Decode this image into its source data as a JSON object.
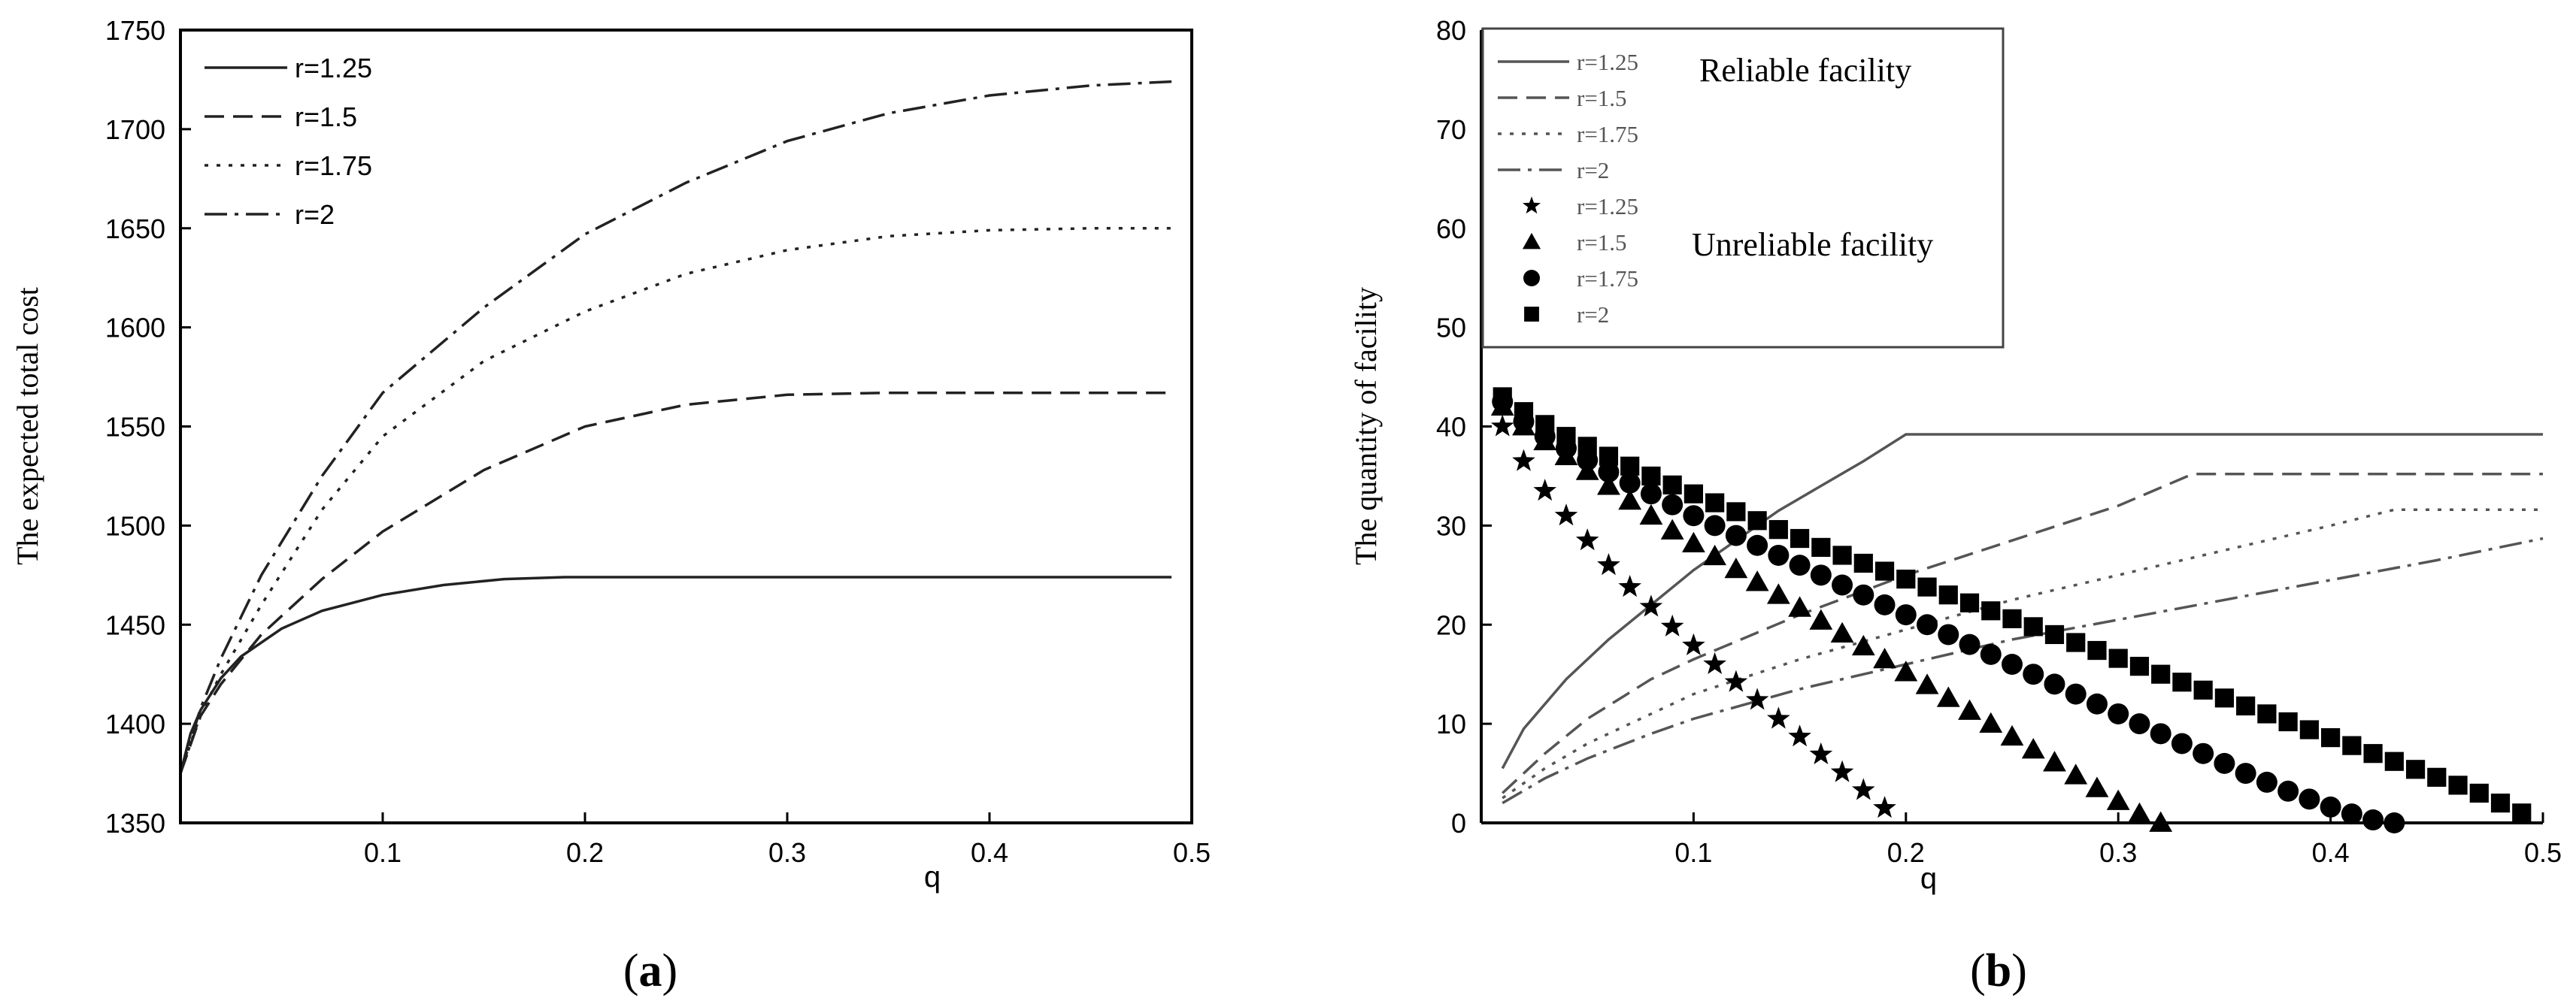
{
  "chart_data": [
    {
      "panel_label_prefix": "(",
      "panel_label_letter": "a",
      "panel_label_suffix": ")",
      "type": "line",
      "title": "",
      "xlabel": "q",
      "ylabel": "The expected total cost",
      "xlim": [
        0,
        0.5
      ],
      "ylim": [
        1350,
        1750
      ],
      "xticks": [
        0.1,
        0.2,
        0.3,
        0.4,
        0.5
      ],
      "xtick_labels": [
        "0.1",
        "0.2",
        "0.3",
        "0.4",
        "0.5"
      ],
      "yticks": [
        1350,
        1400,
        1450,
        1500,
        1550,
        1600,
        1650,
        1700,
        1750
      ],
      "ytick_labels": [
        "1350",
        "1400",
        "1450",
        "1500",
        "1550",
        "1600",
        "1650",
        "1700",
        "1750"
      ],
      "grid": false,
      "legend_position": "top-left",
      "series": [
        {
          "name": "r=1.25",
          "dash": "solid",
          "x": [
            0.0,
            0.005,
            0.01,
            0.02,
            0.03,
            0.05,
            0.07,
            0.1,
            0.13,
            0.16,
            0.19,
            0.2,
            0.3,
            0.4,
            0.49
          ],
          "y": [
            1375,
            1395,
            1407,
            1423,
            1434,
            1448,
            1457,
            1465,
            1470,
            1473,
            1474,
            1474,
            1474,
            1474,
            1474
          ]
        },
        {
          "name": "r=1.5",
          "dash": "dash",
          "x": [
            0.0,
            0.01,
            0.02,
            0.04,
            0.07,
            0.1,
            0.15,
            0.2,
            0.25,
            0.3,
            0.35,
            0.4,
            0.49
          ],
          "y": [
            1375,
            1404,
            1420,
            1445,
            1473,
            1497,
            1528,
            1550,
            1561,
            1566,
            1567,
            1567,
            1567
          ]
        },
        {
          "name": "r=1.75",
          "dash": "dot",
          "x": [
            0.0,
            0.01,
            0.02,
            0.04,
            0.07,
            0.1,
            0.15,
            0.2,
            0.25,
            0.3,
            0.35,
            0.4,
            0.45,
            0.49
          ],
          "y": [
            1375,
            1405,
            1425,
            1460,
            1508,
            1545,
            1583,
            1608,
            1627,
            1639,
            1646,
            1649,
            1650,
            1650
          ]
        },
        {
          "name": "r=2",
          "dash": "dashdot",
          "x": [
            0.0,
            0.01,
            0.02,
            0.04,
            0.07,
            0.1,
            0.15,
            0.2,
            0.25,
            0.3,
            0.35,
            0.4,
            0.45,
            0.49
          ],
          "y": [
            1375,
            1408,
            1433,
            1475,
            1525,
            1567,
            1610,
            1647,
            1673,
            1694,
            1708,
            1717,
            1722,
            1724
          ]
        }
      ]
    },
    {
      "panel_label_prefix": "(",
      "panel_label_letter": "b",
      "panel_label_suffix": ")",
      "type": "line",
      "title": "",
      "xlabel": "q",
      "ylabel": "The quantity of facility",
      "xlim": [
        0,
        0.5
      ],
      "ylim": [
        0,
        80
      ],
      "xticks": [
        0.1,
        0.2,
        0.3,
        0.4,
        0.5
      ],
      "xtick_labels": [
        "0.1",
        "0.2",
        "0.3",
        "0.4",
        "0.5"
      ],
      "yticks": [
        0,
        10,
        20,
        30,
        40,
        50,
        60,
        70,
        80
      ],
      "ytick_labels": [
        "0",
        "10",
        "20",
        "30",
        "40",
        "50",
        "60",
        "70",
        "80"
      ],
      "grid": false,
      "legend_position": "top-left",
      "legend_group_labels": [
        "Reliable facility",
        "Unreliable facility"
      ],
      "series": [
        {
          "name": "r=1.25",
          "group": "Reliable facility",
          "dash": "solid",
          "x": [
            0.01,
            0.02,
            0.04,
            0.06,
            0.08,
            0.1,
            0.12,
            0.14,
            0.16,
            0.18,
            0.2,
            0.3,
            0.4,
            0.5
          ],
          "y": [
            5.5,
            9.5,
            14.5,
            18.5,
            22,
            25.5,
            28.5,
            31.5,
            34,
            36.5,
            39.2,
            39.2,
            39.2,
            39.2
          ]
        },
        {
          "name": "r=1.5",
          "group": "Reliable facility",
          "dash": "dash",
          "x": [
            0.01,
            0.03,
            0.05,
            0.08,
            0.1,
            0.15,
            0.2,
            0.25,
            0.3,
            0.335,
            0.4,
            0.5
          ],
          "y": [
            3,
            7,
            10.5,
            14.5,
            16.5,
            21,
            25,
            28.5,
            32,
            35.2,
            35.2,
            35.2
          ]
        },
        {
          "name": "r=1.75",
          "group": "Reliable facility",
          "dash": "dot",
          "x": [
            0.01,
            0.03,
            0.05,
            0.08,
            0.1,
            0.15,
            0.2,
            0.25,
            0.3,
            0.35,
            0.4,
            0.43,
            0.5
          ],
          "y": [
            2.5,
            5.5,
            8,
            11,
            13,
            16.5,
            19.5,
            22.5,
            25,
            27.5,
            30,
            31.6,
            31.6
          ]
        },
        {
          "name": "r=2",
          "group": "Reliable facility",
          "dash": "dashdot",
          "x": [
            0.01,
            0.03,
            0.05,
            0.08,
            0.1,
            0.15,
            0.2,
            0.25,
            0.3,
            0.35,
            0.4,
            0.45,
            0.5
          ],
          "y": [
            2,
            4.5,
            6.5,
            9,
            10.5,
            13.5,
            16,
            18.5,
            20.5,
            22.5,
            24.5,
            26.5,
            28.7
          ]
        },
        {
          "name": "r=1.25",
          "group": "Unreliable facility",
          "marker": "star",
          "x": [
            0.01,
            0.02,
            0.03,
            0.04,
            0.05,
            0.06,
            0.07,
            0.08,
            0.09,
            0.1,
            0.11,
            0.12,
            0.13,
            0.14,
            0.15,
            0.16,
            0.17,
            0.18,
            0.19
          ],
          "y": [
            40,
            36.5,
            33.5,
            31,
            28.5,
            26,
            23.8,
            21.8,
            19.8,
            17.9,
            16,
            14.2,
            12.4,
            10.5,
            8.7,
            6.9,
            5.1,
            3.3,
            1.5
          ]
        },
        {
          "name": "r=1.5",
          "group": "Unreliable facility",
          "marker": "triangle",
          "x": [
            0.01,
            0.02,
            0.03,
            0.04,
            0.05,
            0.06,
            0.07,
            0.08,
            0.09,
            0.1,
            0.11,
            0.12,
            0.13,
            0.14,
            0.15,
            0.16,
            0.17,
            0.18,
            0.19,
            0.2,
            0.21,
            0.22,
            0.23,
            0.24,
            0.25,
            0.26,
            0.27,
            0.28,
            0.29,
            0.3,
            0.31,
            0.32
          ],
          "y": [
            42,
            40,
            38.5,
            37,
            35.5,
            34,
            32.5,
            31,
            29.5,
            28.2,
            26.9,
            25.6,
            24.3,
            23,
            21.7,
            20.4,
            19.1,
            17.8,
            16.5,
            15.2,
            13.9,
            12.6,
            11.3,
            10,
            8.7,
            7.4,
            6.1,
            4.8,
            3.5,
            2.2,
            0.9,
            0
          ]
        },
        {
          "name": "r=1.75",
          "group": "Unreliable facility",
          "marker": "circle",
          "x": [
            0.01,
            0.02,
            0.03,
            0.04,
            0.05,
            0.06,
            0.07,
            0.08,
            0.09,
            0.1,
            0.11,
            0.12,
            0.13,
            0.14,
            0.15,
            0.16,
            0.17,
            0.18,
            0.19,
            0.2,
            0.21,
            0.22,
            0.23,
            0.24,
            0.25,
            0.26,
            0.27,
            0.28,
            0.29,
            0.3,
            0.31,
            0.32,
            0.33,
            0.34,
            0.35,
            0.36,
            0.37,
            0.38,
            0.39,
            0.4,
            0.41,
            0.42,
            0.43
          ],
          "y": [
            42.5,
            40.5,
            39,
            37.8,
            36.6,
            35.4,
            34.3,
            33.2,
            32.1,
            31,
            30,
            29,
            28,
            27,
            26,
            25,
            24,
            23,
            22,
            21,
            20,
            19,
            18,
            17,
            16,
            15,
            14,
            13,
            12,
            11,
            10,
            9,
            8,
            7,
            6,
            5,
            4.1,
            3.2,
            2.4,
            1.6,
            0.9,
            0.3,
            0
          ]
        },
        {
          "name": "r=2",
          "group": "Unreliable facility",
          "marker": "square",
          "x": [
            0.01,
            0.02,
            0.03,
            0.04,
            0.05,
            0.06,
            0.07,
            0.08,
            0.09,
            0.1,
            0.11,
            0.12,
            0.13,
            0.14,
            0.15,
            0.16,
            0.17,
            0.18,
            0.19,
            0.2,
            0.21,
            0.22,
            0.23,
            0.24,
            0.25,
            0.26,
            0.27,
            0.28,
            0.29,
            0.3,
            0.31,
            0.32,
            0.33,
            0.34,
            0.35,
            0.36,
            0.37,
            0.38,
            0.39,
            0.4,
            0.41,
            0.42,
            0.43,
            0.44,
            0.45,
            0.46,
            0.47,
            0.48,
            0.49
          ],
          "y": [
            43,
            41.5,
            40.2,
            39,
            38,
            37,
            36,
            35,
            34.1,
            33.2,
            32.3,
            31.4,
            30.5,
            29.6,
            28.7,
            27.8,
            27,
            26.2,
            25.4,
            24.6,
            23.8,
            23,
            22.2,
            21.4,
            20.6,
            19.8,
            19,
            18.2,
            17.4,
            16.6,
            15.8,
            15,
            14.2,
            13.4,
            12.6,
            11.8,
            11,
            10.2,
            9.4,
            8.6,
            7.8,
            7,
            6.2,
            5.4,
            4.6,
            3.8,
            3,
            2,
            1
          ]
        }
      ]
    }
  ]
}
